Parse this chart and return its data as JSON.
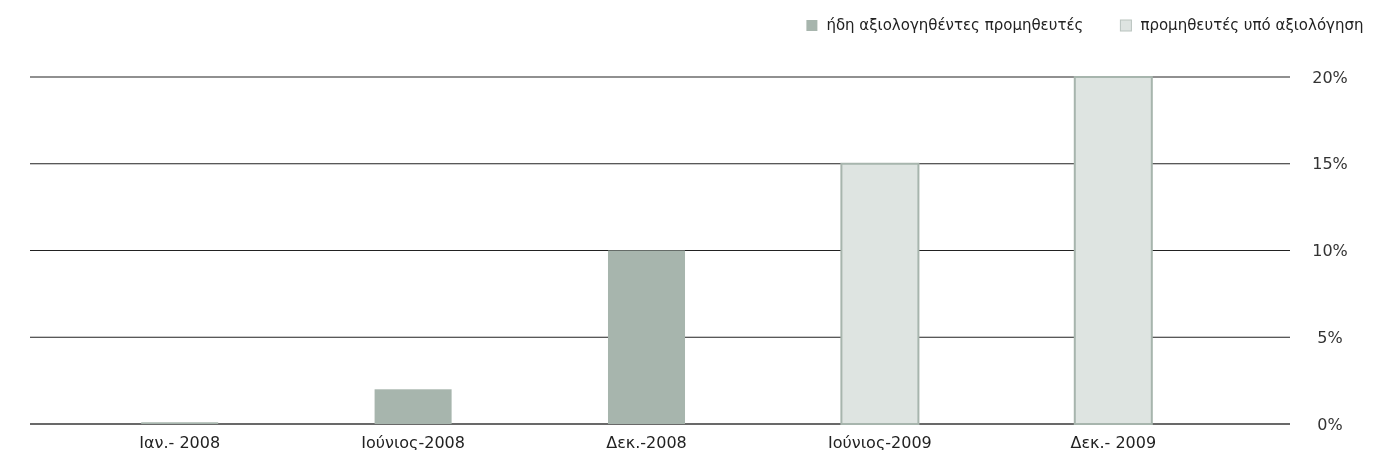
{
  "chart_data": {
    "type": "bar",
    "categories": [
      "Ιαν.- 2008",
      "Ιούνιος-2008",
      "Δεκ.-2008",
      "Ιούνιος-2009",
      "Δεκ.- 2009"
    ],
    "series": [
      {
        "name": "ήδη αξιολογηθέντες προμηθευτές",
        "color": "#a7b5ad",
        "values": [
          0.1,
          2,
          10,
          null,
          null
        ]
      },
      {
        "name": "προμηθευτές υπό αξιολόγηση",
        "color": "#dee4e1",
        "values": [
          null,
          null,
          null,
          15,
          20
        ]
      }
    ],
    "ylim": [
      0,
      20
    ],
    "yticks": [
      {
        "value": 0,
        "label": "0%"
      },
      {
        "value": 5,
        "label": "5%"
      },
      {
        "value": 10,
        "label": "10%"
      },
      {
        "value": 15,
        "label": "15%"
      },
      {
        "value": 20,
        "label": "20%"
      }
    ],
    "grid": "y",
    "legend": "top right"
  }
}
